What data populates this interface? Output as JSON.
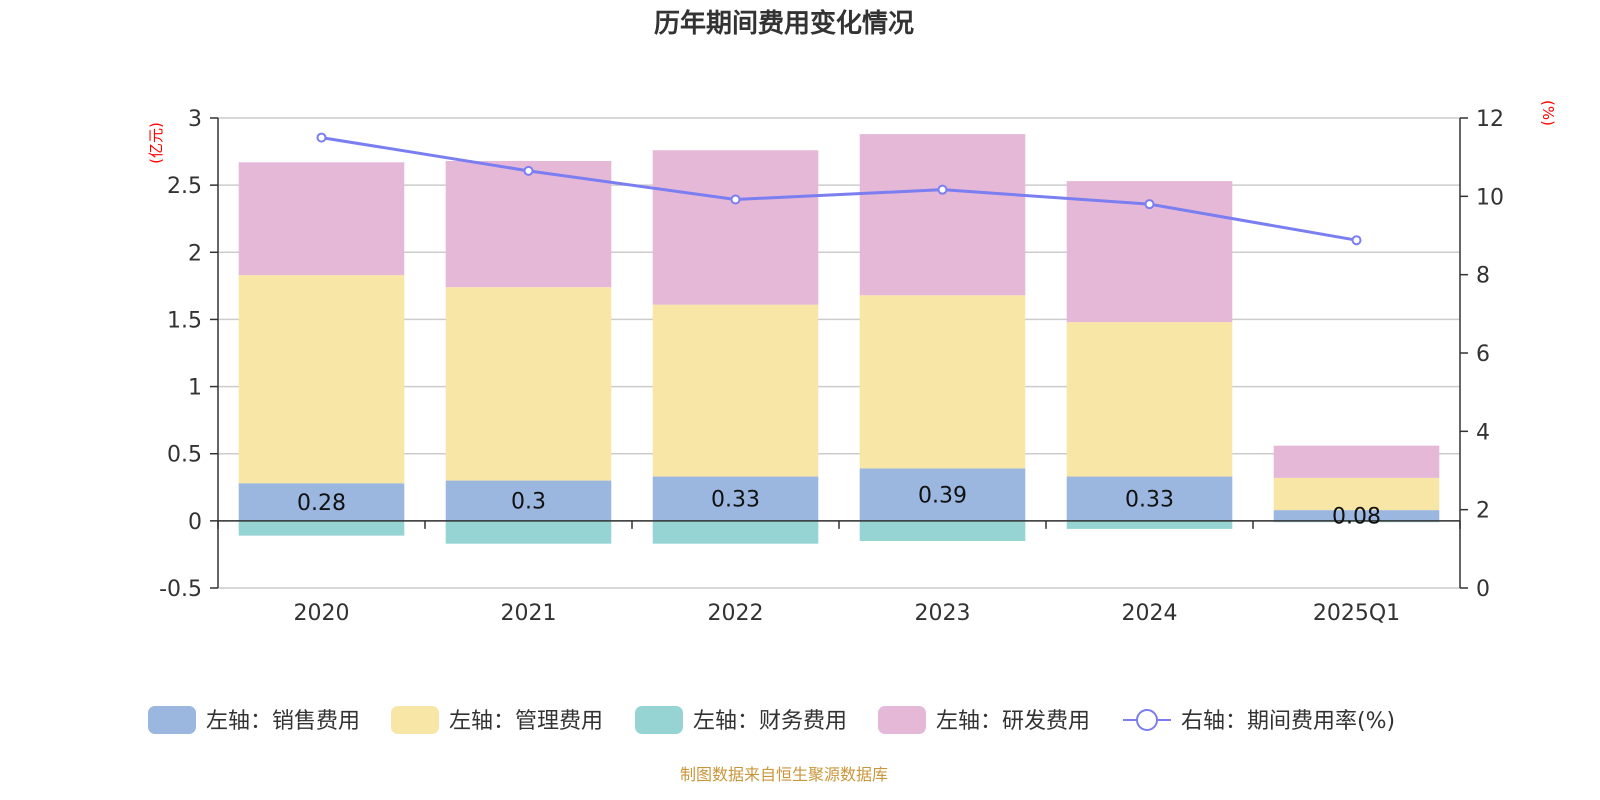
{
  "chart_data": {
    "type": "bar",
    "title": "历年期间费用变化情况",
    "categories": [
      "2020",
      "2021",
      "2022",
      "2023",
      "2024",
      "2025Q1"
    ],
    "left_axis": {
      "unit": "(亿元)",
      "range": [
        -0.5,
        3
      ],
      "ticks": [
        "-0.5",
        "0",
        "0.5",
        "1",
        "1.5",
        "2",
        "2.5",
        "3"
      ]
    },
    "right_axis": {
      "unit": "(%)",
      "range": [
        0,
        12
      ],
      "ticks": [
        "0",
        "2",
        "4",
        "6",
        "8",
        "10",
        "12"
      ]
    },
    "series": [
      {
        "name": "左轴：销售费用",
        "axis": "left",
        "kind": "bar",
        "color": "#9bb7e0",
        "values": [
          0.28,
          0.3,
          0.33,
          0.39,
          0.33,
          0.08
        ],
        "labels": [
          "0.28",
          "0.3",
          "0.33",
          "0.39",
          "0.33",
          "0.08"
        ]
      },
      {
        "name": "左轴：管理费用",
        "axis": "left",
        "kind": "bar",
        "color": "#f8e6a6",
        "values": [
          1.55,
          1.44,
          1.28,
          1.29,
          1.15,
          0.24
        ]
      },
      {
        "name": "左轴：财务费用",
        "axis": "left",
        "kind": "bar",
        "color": "#96d4d4",
        "values": [
          -0.11,
          -0.17,
          -0.17,
          -0.15,
          -0.06,
          -0.01
        ]
      },
      {
        "name": "左轴：研发费用",
        "axis": "left",
        "kind": "bar",
        "color": "#e6b8d8",
        "values": [
          0.84,
          0.94,
          1.15,
          1.2,
          1.05,
          0.24
        ]
      },
      {
        "name": "右轴：期间费用率(%)",
        "axis": "right",
        "kind": "line",
        "color": "#7a7ef0",
        "values": [
          11.5,
          10.65,
          9.92,
          10.17,
          9.8,
          8.88
        ]
      }
    ],
    "grid": true,
    "legend_position": "bottom"
  },
  "source": "制图数据来自恒生聚源数据库"
}
